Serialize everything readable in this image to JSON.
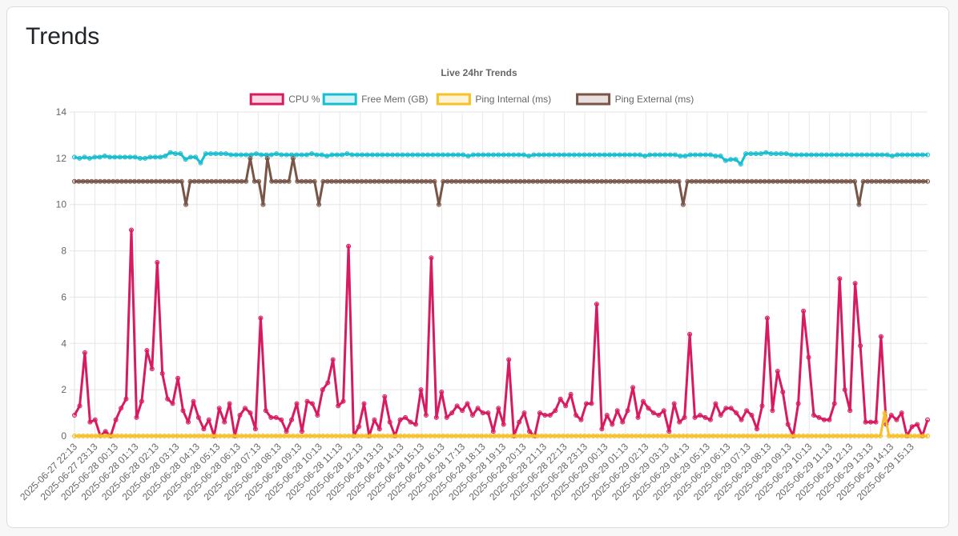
{
  "card": {
    "title": "Trends"
  },
  "chart_data": {
    "type": "line",
    "title": "Live 24hr Trends",
    "ylim": [
      0,
      14
    ],
    "yticks": [
      0,
      2,
      4,
      6,
      8,
      10,
      12,
      14
    ],
    "grid": true,
    "legend_position": "top-center",
    "x_tick_labels": [
      "2025-06-27 22:13",
      "2025-06-27 23:13",
      "2025-06-28 00:13",
      "2025-06-28 01:13",
      "2025-06-28 02:13",
      "2025-06-28 03:13",
      "2025-06-28 04:13",
      "2025-06-28 05:13",
      "2025-06-28 06:13",
      "2025-06-28 07:13",
      "2025-06-28 08:13",
      "2025-06-28 09:13",
      "2025-06-28 10:13",
      "2025-06-28 11:13",
      "2025-06-28 12:13",
      "2025-06-28 13:13",
      "2025-06-28 14:13",
      "2025-06-28 15:13",
      "2025-06-28 16:13",
      "2025-06-28 17:13",
      "2025-06-28 18:13",
      "2025-06-28 19:13",
      "2025-06-28 20:13",
      "2025-06-28 21:13",
      "2025-06-28 22:13",
      "2025-06-28 23:13",
      "2025-06-29 00:13",
      "2025-06-29 01:13",
      "2025-06-29 02:13",
      "2025-06-29 03:13",
      "2025-06-29 04:13",
      "2025-06-29 05:13",
      "2025-06-29 06:13",
      "2025-06-29 07:13",
      "2025-06-29 08:13",
      "2025-06-29 09:13",
      "2025-06-29 10:13",
      "2025-06-29 11:13",
      "2025-06-29 12:13",
      "2025-06-29 13:13",
      "2025-06-29 14:13",
      "2025-06-29 15:13"
    ],
    "series": [
      {
        "name": "CPU %",
        "color": "#d81b60",
        "values": [
          0.9,
          1.3,
          3.6,
          0.6,
          0.7,
          0.0,
          0.2,
          0.0,
          0.7,
          1.2,
          1.6,
          8.9,
          0.8,
          1.5,
          3.7,
          2.9,
          7.5,
          2.7,
          1.6,
          1.4,
          2.5,
          1.1,
          0.6,
          1.5,
          0.8,
          0.3,
          0.7,
          0.0,
          1.2,
          0.6,
          1.4,
          0.0,
          0.9,
          1.2,
          1.0,
          0.3,
          5.1,
          1.1,
          0.8,
          0.8,
          0.7,
          0.2,
          0.7,
          1.4,
          0.2,
          1.5,
          1.4,
          0.9,
          2.0,
          2.3,
          3.3,
          1.3,
          1.5,
          8.2,
          0.0,
          0.4,
          1.4,
          0.0,
          0.7,
          0.3,
          1.7,
          0.6,
          0.0,
          0.7,
          0.8,
          0.6,
          0.5,
          2.0,
          0.9,
          7.7,
          0.8,
          1.9,
          0.8,
          1.0,
          1.3,
          1.1,
          1.4,
          0.9,
          1.2,
          1.0,
          1.0,
          0.2,
          1.2,
          0.5,
          3.3,
          0.0,
          0.6,
          1.0,
          0.2,
          0.0,
          1.0,
          0.9,
          0.9,
          1.1,
          1.6,
          1.3,
          1.8,
          0.9,
          0.7,
          1.4,
          1.4,
          5.7,
          0.3,
          0.9,
          0.5,
          1.1,
          0.6,
          1.1,
          2.1,
          0.8,
          1.5,
          1.2,
          1.0,
          0.9,
          1.1,
          0.2,
          1.4,
          0.6,
          0.8,
          4.4,
          0.8,
          0.9,
          0.8,
          0.7,
          1.4,
          0.9,
          1.2,
          1.2,
          1.0,
          0.7,
          1.1,
          0.9,
          0.3,
          1.3,
          5.1,
          1.1,
          2.8,
          1.9,
          0.5,
          0.0,
          1.4,
          5.4,
          3.4,
          0.9,
          0.8,
          0.7,
          0.7,
          1.4,
          6.8,
          2.0,
          1.1,
          6.6,
          3.9,
          0.6,
          0.6,
          0.6,
          4.3,
          0.5,
          0.9,
          0.7,
          1.0,
          0.0,
          0.4,
          0.5,
          0.0,
          0.7
        ]
      },
      {
        "name": "Free Mem (GB)",
        "color": "#17becf",
        "values": [
          12.05,
          12.0,
          12.05,
          12.0,
          12.05,
          12.05,
          12.1,
          12.05,
          12.05,
          12.05,
          12.05,
          12.05,
          12.05,
          12.0,
          12.0,
          12.05,
          12.05,
          12.05,
          12.1,
          12.25,
          12.2,
          12.2,
          11.95,
          12.05,
          12.05,
          11.8,
          12.2,
          12.2,
          12.2,
          12.2,
          12.2,
          12.15,
          12.15,
          12.15,
          12.15,
          12.15,
          12.2,
          12.15,
          12.15,
          12.15,
          12.2,
          12.15,
          12.15,
          12.15,
          12.15,
          12.15,
          12.15,
          12.2,
          12.15,
          12.15,
          12.1,
          12.15,
          12.15,
          12.15,
          12.2,
          12.15,
          12.15,
          12.15,
          12.15,
          12.15,
          12.15,
          12.15,
          12.15,
          12.15,
          12.15,
          12.15,
          12.15,
          12.15,
          12.15,
          12.15,
          12.15,
          12.15,
          12.15,
          12.15,
          12.15,
          12.15,
          12.15,
          12.15,
          12.1,
          12.15,
          12.15,
          12.15,
          12.15,
          12.15,
          12.15,
          12.15,
          12.15,
          12.15,
          12.15,
          12.15,
          12.1,
          12.15,
          12.15,
          12.15,
          12.15,
          12.15,
          12.15,
          12.15,
          12.15,
          12.15,
          12.15,
          12.15,
          12.15,
          12.15,
          12.15,
          12.15,
          12.15,
          12.15,
          12.15,
          12.15,
          12.15,
          12.15,
          12.15,
          12.1,
          12.15,
          12.15,
          12.15,
          12.15,
          12.15,
          12.15,
          12.1,
          12.1,
          12.15,
          12.15,
          12.15,
          12.15,
          12.15,
          12.1,
          12.1,
          11.9,
          11.95,
          11.95,
          11.75,
          12.2,
          12.2,
          12.2,
          12.2,
          12.25,
          12.2,
          12.2,
          12.2,
          12.2,
          12.15,
          12.15,
          12.15,
          12.15,
          12.15,
          12.15,
          12.15,
          12.15,
          12.15,
          12.15,
          12.15,
          12.15,
          12.15,
          12.15,
          12.15,
          12.15,
          12.15,
          12.15,
          12.15,
          12.15,
          12.1,
          12.15,
          12.15,
          12.15,
          12.15,
          12.15,
          12.15,
          12.15
        ]
      },
      {
        "name": "Ping Internal (ms)",
        "color": "#f6c026",
        "values": [
          0,
          0,
          0,
          0,
          0,
          0,
          0,
          0,
          0,
          0,
          0,
          0,
          0,
          0,
          0,
          0,
          0,
          0,
          0,
          0,
          0,
          0,
          0,
          0,
          0,
          0,
          0,
          0,
          0,
          0,
          0,
          0,
          0,
          0,
          0,
          0,
          0,
          0,
          0,
          0,
          0,
          0,
          0,
          0,
          0,
          0,
          0,
          0,
          0,
          0,
          0,
          0,
          0,
          0,
          0,
          0,
          0,
          0,
          0,
          0,
          0,
          0,
          0,
          0,
          0,
          0,
          0,
          0,
          0,
          0,
          0,
          0,
          0,
          0,
          0,
          0,
          0,
          0,
          0,
          0,
          0,
          0,
          0,
          0,
          0,
          0,
          0,
          0,
          0,
          0,
          0,
          0,
          0,
          0,
          0,
          0,
          0,
          0,
          0,
          0,
          0,
          0,
          0,
          0,
          0,
          0,
          0,
          0,
          0,
          0,
          0,
          0,
          0,
          0,
          0,
          0,
          0,
          0,
          0,
          0,
          0,
          0,
          0,
          0,
          0,
          0,
          0,
          0,
          0,
          0,
          0,
          0,
          0,
          0,
          0,
          0,
          0,
          0,
          0,
          0,
          0,
          0,
          0,
          0,
          0,
          0,
          0,
          0,
          0,
          0,
          0,
          0,
          0,
          0,
          0,
          0,
          0,
          0,
          0,
          0,
          0,
          0,
          0,
          0,
          0,
          0,
          0,
          0,
          0,
          0,
          0,
          0,
          0,
          0,
          0,
          0,
          0,
          0,
          0,
          0,
          0,
          0,
          0,
          0,
          0,
          0,
          0,
          0,
          0,
          1.0,
          0,
          0,
          0,
          0,
          0,
          0,
          0,
          0,
          0,
          0
        ]
      },
      {
        "name": "Ping External (ms)",
        "color": "#795548",
        "values": [
          11,
          11,
          11,
          11,
          11,
          11,
          11,
          11,
          11,
          11,
          11,
          11,
          11,
          11,
          11,
          11,
          11,
          11,
          11,
          11,
          11,
          11,
          11,
          11,
          11,
          11,
          10,
          11,
          11,
          11,
          11,
          11,
          11,
          11,
          11,
          11,
          11,
          11,
          11,
          11,
          11,
          12,
          11,
          11,
          10,
          12,
          11,
          11,
          11,
          11,
          11,
          12,
          11,
          11,
          11,
          11,
          11,
          10,
          11,
          11,
          11,
          11,
          11,
          11,
          11,
          11,
          11,
          11,
          11,
          11,
          11,
          11,
          11,
          11,
          11,
          11,
          11,
          11,
          11,
          11,
          11,
          11,
          11,
          11,
          11,
          10,
          11,
          11,
          11,
          11,
          11,
          11,
          11,
          11,
          11,
          11,
          11,
          11,
          11,
          11,
          11,
          11,
          11,
          11,
          11,
          11,
          11,
          11,
          11,
          11,
          11,
          11,
          11,
          11,
          11,
          11,
          11,
          11,
          11,
          11,
          11,
          11,
          11,
          11,
          11,
          11,
          11,
          11,
          11,
          11,
          11,
          11,
          11,
          11,
          11,
          11,
          11,
          11,
          11,
          11,
          11,
          11,
          10,
          11,
          11,
          11,
          11,
          11,
          11,
          11,
          11,
          11,
          11,
          11,
          11,
          11,
          11,
          11,
          11,
          11,
          11,
          11,
          11,
          11,
          11,
          11,
          11,
          11,
          11,
          11,
          11,
          11,
          11,
          11,
          11,
          11,
          11,
          11,
          11,
          11,
          11,
          11,
          11,
          10,
          11,
          11,
          11,
          11,
          11,
          11,
          11,
          11,
          11,
          11,
          11,
          11,
          11,
          11,
          11,
          11
        ]
      }
    ]
  }
}
